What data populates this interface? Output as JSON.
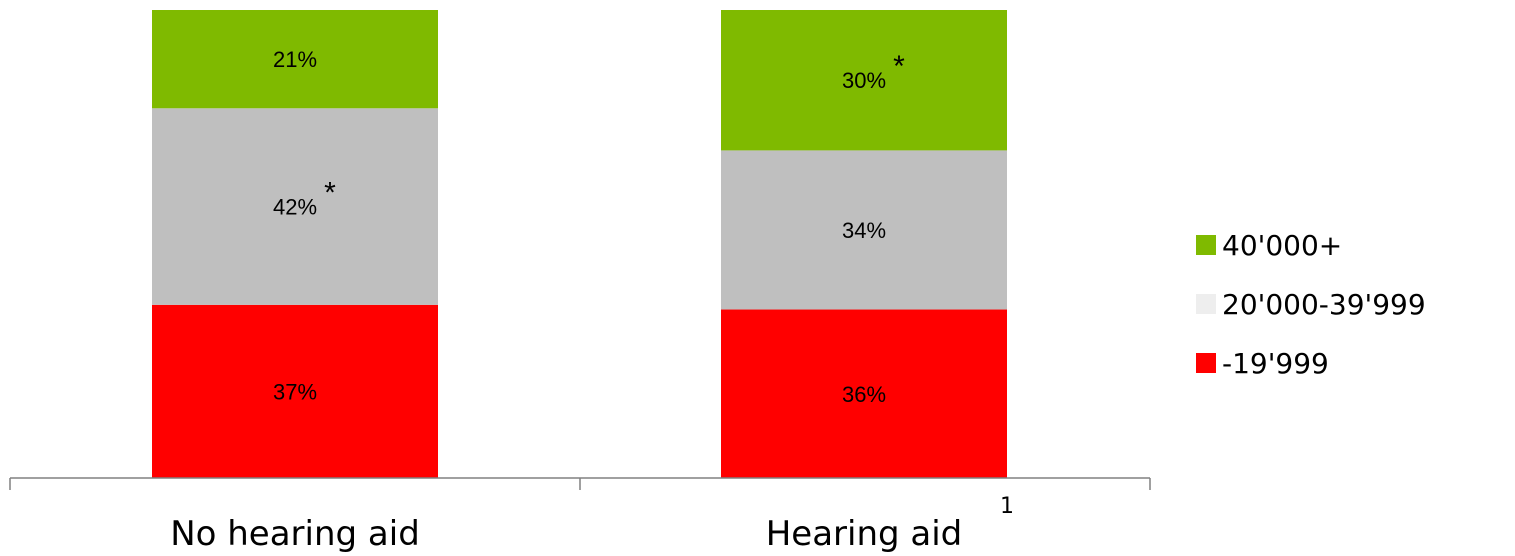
{
  "chart_data": {
    "type": "bar",
    "stacked": true,
    "percent_stacked": true,
    "categories": [
      "No hearing aid",
      "Hearing aid"
    ],
    "category_footnotes": [
      "",
      "1"
    ],
    "series": [
      {
        "name": "-19'999",
        "color": "#ff0000",
        "values": [
          37,
          36
        ],
        "labels": [
          "37%",
          "36%"
        ],
        "asterisk": [
          false,
          false
        ]
      },
      {
        "name": "20'000-39'999",
        "color": "#bfbfbf",
        "legend_color": "#eeeeee",
        "values": [
          42,
          34
        ],
        "labels": [
          "42%",
          "34%"
        ],
        "asterisk": [
          true,
          false
        ]
      },
      {
        "name": "40'000+",
        "color": "#7fba00",
        "values": [
          21,
          30
        ],
        "labels": [
          "21%",
          "30%"
        ],
        "asterisk": [
          false,
          true
        ]
      }
    ],
    "asterisk_symbol": "*",
    "ylim": [
      0,
      100
    ],
    "grid": false,
    "legend_position": "right",
    "legend_order": [
      "40'000+",
      "20'000-39'999",
      "-19'999"
    ]
  }
}
